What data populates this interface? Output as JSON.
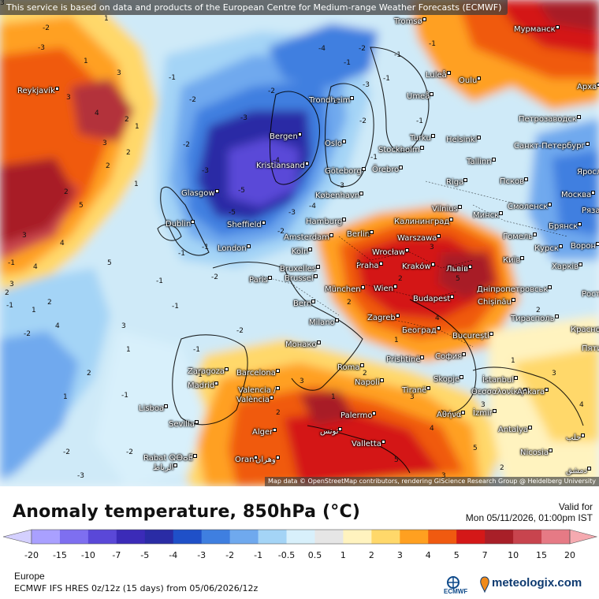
{
  "notice": "This service is based on data and products of the European Centre for Medium-range Weather Forecasts (ECMWF)",
  "attribution": "Map data © OpenStreetMap contributors, rendering GIScience Research Group @ Heidelberg University",
  "title": "Anomaly temperature, 850hPa (°C)",
  "valid_label": "Valid for",
  "valid_value": "Mon 05/11/2026, 01:00pm IST",
  "region": "Europe",
  "model_run": "ECMWF IFS HRES 0z/12z (15 days) from 05/06/2026/12z",
  "ecmwf_logo_text": "ECMWF",
  "brand": "meteologix.com",
  "legend": {
    "labels": [
      "-20",
      "-15",
      "-10",
      "-7",
      "-5",
      "-4",
      "-3",
      "-2",
      "-1",
      "-0.5",
      "0.5",
      "1",
      "2",
      "3",
      "4",
      "5",
      "7",
      "10",
      "15",
      "20"
    ],
    "colors": [
      "#a9a0ff",
      "#7e6ff0",
      "#5a48d8",
      "#3b2bb8",
      "#2a2ca5",
      "#1f50c8",
      "#3f7fe0",
      "#6fa9ee",
      "#a4d4f6",
      "#d8f0fb",
      "#e6e6e6",
      "#fff3bf",
      "#ffd86a",
      "#ffa020",
      "#f05a10",
      "#d41818",
      "#a81f28",
      "#c8444e",
      "#e67a85",
      "#f5aab0"
    ]
  },
  "cities": [
    {
      "name": "Tromsø"
    },
    {
      "name": "Мурманск"
    },
    {
      "name": "Reykjavík"
    },
    {
      "name": "Luleå"
    },
    {
      "name": "Oulu"
    },
    {
      "name": "Арха"
    },
    {
      "name": "Trondheim"
    },
    {
      "name": "Umeå"
    },
    {
      "name": "Петрозаводск"
    },
    {
      "name": "Bergen"
    },
    {
      "name": "Turku"
    },
    {
      "name": "Helsinki"
    },
    {
      "name": "Oslo"
    },
    {
      "name": "Stockholm"
    },
    {
      "name": "Санкт-Петербург"
    },
    {
      "name": "Kristiansand"
    },
    {
      "name": "Göteborg"
    },
    {
      "name": "Örebro"
    },
    {
      "name": "Tallinn"
    },
    {
      "name": "Яросл"
    },
    {
      "name": "Glasgow"
    },
    {
      "name": "København"
    },
    {
      "name": "Riga"
    },
    {
      "name": "Псков"
    },
    {
      "name": "Москва"
    },
    {
      "name": "Vilnius"
    },
    {
      "name": "Смоленск"
    },
    {
      "name": "Рязань"
    },
    {
      "name": "Dublin"
    },
    {
      "name": "Sheffield"
    },
    {
      "name": "Hamburg"
    },
    {
      "name": "Калининград"
    },
    {
      "name": "Минск"
    },
    {
      "name": "Брянск"
    },
    {
      "name": "Amsterdam"
    },
    {
      "name": "Berlin"
    },
    {
      "name": "Гомель"
    },
    {
      "name": "London"
    },
    {
      "name": "Warszawa"
    },
    {
      "name": "Курск"
    },
    {
      "name": "Ворон"
    },
    {
      "name": "Köln"
    },
    {
      "name": "Wrocław"
    },
    {
      "name": "Київ"
    },
    {
      "name": "Харків"
    },
    {
      "name": "Bruxelles"
    },
    {
      "name": "Brussel"
    },
    {
      "name": "Praha"
    },
    {
      "name": "Kraków"
    },
    {
      "name": "Львів"
    },
    {
      "name": "Paris"
    },
    {
      "name": "München"
    },
    {
      "name": "Wien"
    },
    {
      "name": "Дніпропетровськ"
    },
    {
      "name": "Ростов"
    },
    {
      "name": "Bern"
    },
    {
      "name": "Budapest"
    },
    {
      "name": "Chișinău"
    },
    {
      "name": "Тирасполь"
    },
    {
      "name": "Milano"
    },
    {
      "name": "Zagreb"
    },
    {
      "name": "Краснод"
    },
    {
      "name": "Београд"
    },
    {
      "name": "București"
    },
    {
      "name": "Монако"
    },
    {
      "name": "Пяти"
    },
    {
      "name": "София"
    },
    {
      "name": "Roma"
    },
    {
      "name": "Prishtinë"
    },
    {
      "name": "Zaragoza"
    },
    {
      "name": "Barcelona"
    },
    {
      "name": "Napoli"
    },
    {
      "name": "Skopje"
    },
    {
      "name": "İstanbul"
    },
    {
      "name": "Madrid"
    },
    {
      "name": "Tiranë"
    },
    {
      "name": "Θεσσαλονίκη"
    },
    {
      "name": "Ankara"
    },
    {
      "name": "Valencia /"
    },
    {
      "name": "València"
    },
    {
      "name": "Lisboa"
    },
    {
      "name": "Palermo"
    },
    {
      "name": "Αθήνα"
    },
    {
      "name": "İzmir"
    },
    {
      "name": "Sevilla"
    },
    {
      "name": "Alger"
    },
    {
      "name": "تونس"
    },
    {
      "name": "Antalya"
    },
    {
      "name": "حلب"
    },
    {
      "name": "Valletta"
    },
    {
      "name": "Rabat ⵕⴱⴰⵟ"
    },
    {
      "name": "الرباط"
    },
    {
      "name": "Oran"
    },
    {
      "name": "وهران"
    },
    {
      "name": "Nicosia"
    },
    {
      "name": "دمشق"
    }
  ],
  "contour_labels": [
    "-2",
    "-3",
    "-1",
    "-1",
    "-2",
    "-3",
    "-4",
    "-2",
    "-1",
    "-1",
    "-3",
    "-1",
    "-1",
    "-2",
    "-1",
    "-2",
    "-1",
    "-2",
    "-3",
    "-4",
    "-5",
    "-3",
    "-2",
    "-1",
    "-3",
    "-4",
    "-3",
    "-5",
    "-2",
    "-1",
    "2",
    "3",
    "1",
    "1",
    "2",
    "3",
    "2",
    "1",
    "2",
    "3",
    "4",
    "5",
    "3",
    "4",
    "5",
    "4",
    "3",
    "2",
    "1",
    "1",
    "2",
    "3",
    "4",
    "1",
    "2",
    "1",
    "-1",
    "-2",
    "-1",
    "-1",
    "-2",
    "-3",
    "-1",
    "-2",
    "-1",
    "1",
    "2",
    "3",
    "4",
    "5",
    "3",
    "2",
    "1",
    "3",
    "4",
    "5",
    "3",
    "2",
    "1",
    "2",
    "1",
    "-2",
    "-1",
    "2",
    "3",
    "4",
    "3",
    "2",
    "3",
    "5",
    "4",
    "4",
    "3"
  ]
}
